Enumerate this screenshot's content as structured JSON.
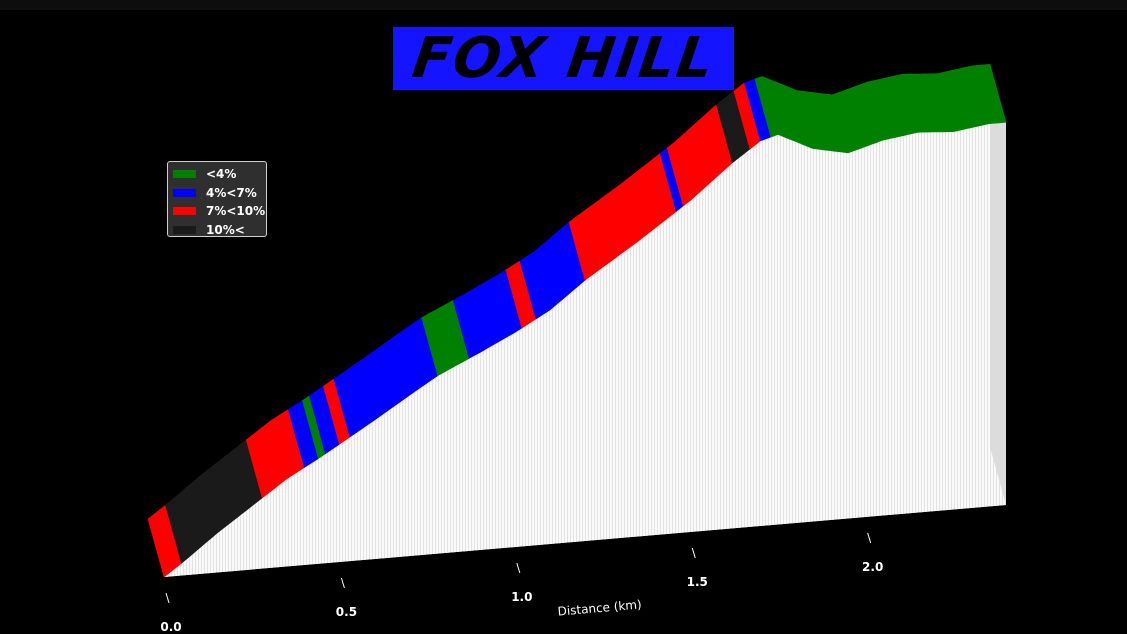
{
  "title": "FOX HILL",
  "colors": {
    "background": "#000000",
    "title_box": "#1414ff",
    "lt4": "#008000",
    "4to7": "#0000ff",
    "7to10": "#ff0000",
    "gt10": "#1a1a1a",
    "wall": "#f4f4f4"
  },
  "legend": {
    "placement": "upper-left",
    "items": [
      {
        "label": "<4%",
        "color": "#008000"
      },
      {
        "label": "4%<7%",
        "color": "#0000ff"
      },
      {
        "label": "7%<10%",
        "color": "#ff0000"
      },
      {
        "label": "10%<",
        "color": "#1a1a1a"
      }
    ]
  },
  "chart_data": {
    "type": "area",
    "title": "FOX HILL",
    "xlabel": "Distance (km)",
    "ylabel": "",
    "x_ticks": [
      "0.0",
      "0.5",
      "1.0",
      "1.5",
      "2.0"
    ],
    "xlim": [
      0,
      2.4
    ],
    "y_units": "m",
    "profile": {
      "x": [
        0.0,
        0.05,
        0.15,
        0.28,
        0.35,
        0.45,
        0.6,
        0.7,
        0.78,
        0.9,
        1.0,
        1.1,
        1.2,
        1.35,
        1.5,
        1.62,
        1.7,
        1.75,
        1.85,
        1.95,
        2.05,
        2.15,
        2.25,
        2.35,
        2.4
      ],
      "y": [
        0,
        5,
        16,
        29,
        36,
        44,
        57,
        66,
        73,
        81,
        88,
        96,
        107,
        121,
        136,
        150,
        158,
        160,
        153,
        150,
        154,
        156,
        155,
        157,
        157
      ]
    },
    "gradient_segments": [
      {
        "from": 0.0,
        "to": 0.05,
        "class": "7%<10%"
      },
      {
        "from": 0.05,
        "to": 0.28,
        "class": "10%<"
      },
      {
        "from": 0.28,
        "to": 0.4,
        "class": "7%<10%"
      },
      {
        "from": 0.4,
        "to": 0.44,
        "class": "4%<7%"
      },
      {
        "from": 0.44,
        "to": 0.46,
        "class": "<4%"
      },
      {
        "from": 0.46,
        "to": 0.5,
        "class": "4%<7%"
      },
      {
        "from": 0.5,
        "to": 0.53,
        "class": "7%<10%"
      },
      {
        "from": 0.53,
        "to": 0.78,
        "class": "4%<7%"
      },
      {
        "from": 0.78,
        "to": 0.87,
        "class": "<4%"
      },
      {
        "from": 0.87,
        "to": 1.02,
        "class": "4%<7%"
      },
      {
        "from": 1.02,
        "to": 1.06,
        "class": "7%<10%"
      },
      {
        "from": 1.06,
        "to": 1.2,
        "class": "4%<7%"
      },
      {
        "from": 1.2,
        "to": 1.46,
        "class": "7%<10%"
      },
      {
        "from": 1.46,
        "to": 1.48,
        "class": "4%<7%"
      },
      {
        "from": 1.48,
        "to": 1.62,
        "class": "7%<10%"
      },
      {
        "from": 1.62,
        "to": 1.67,
        "class": "10%<"
      },
      {
        "from": 1.67,
        "to": 1.7,
        "class": "7%<10%"
      },
      {
        "from": 1.7,
        "to": 1.73,
        "class": "4%<7%"
      },
      {
        "from": 1.73,
        "to": 2.4,
        "class": "<4%"
      }
    ],
    "grid": false
  }
}
